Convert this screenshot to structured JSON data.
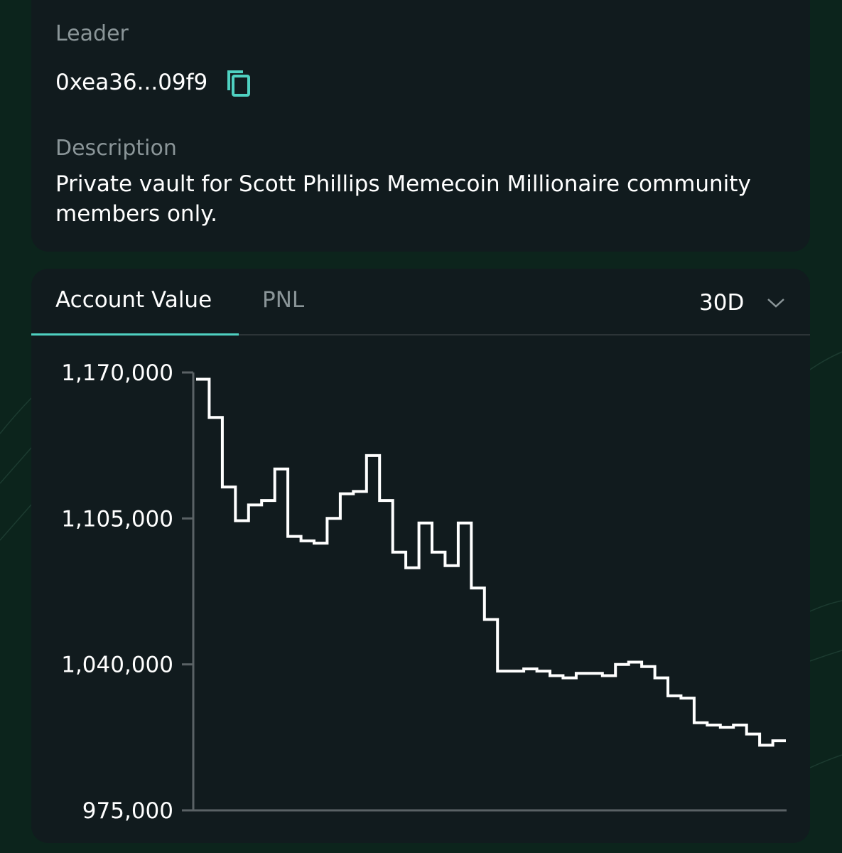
{
  "vault_info": {
    "leader_label": "Leader",
    "leader_address": "0xea36...09f9",
    "copy_icon": "copy-icon",
    "description_label": "Description",
    "description_text": "Private vault for Scott Phillips Memecoin Millionaire community members only."
  },
  "chart_panel": {
    "tabs": [
      {
        "label": "Account Value",
        "active": true
      },
      {
        "label": "PNL",
        "active": false
      }
    ],
    "range": {
      "selected": "30D",
      "icon": "chevron-down-icon"
    },
    "accent_color": "#4fd1c1"
  },
  "chart_data": {
    "type": "line",
    "step": true,
    "title": "",
    "xlabel": "",
    "ylabel": "",
    "ylim": [
      975000,
      1170000
    ],
    "yticks": [
      975000,
      1040000,
      1105000,
      1170000
    ],
    "ytick_labels": [
      "975,000",
      "1,040,000",
      "1,105,000",
      "1,170,000"
    ],
    "series": [
      {
        "color": "#ffffff",
        "x": [
          0,
          1,
          2,
          3,
          4,
          5,
          6,
          7,
          8,
          9,
          10,
          11,
          12,
          13,
          14,
          15,
          16,
          17,
          18,
          19,
          20,
          21,
          22,
          23,
          24,
          25,
          26,
          27,
          28,
          29,
          30,
          31,
          32,
          33,
          34,
          35,
          36,
          37,
          38,
          39,
          40,
          41,
          42,
          43,
          44
        ],
        "values": [
          1167000,
          1150000,
          1119000,
          1104000,
          1111000,
          1113000,
          1127000,
          1097000,
          1095000,
          1094000,
          1105000,
          1116000,
          1117000,
          1133000,
          1113000,
          1090000,
          1083000,
          1103000,
          1090000,
          1084000,
          1103000,
          1074000,
          1060000,
          1037000,
          1037000,
          1038000,
          1037000,
          1035000,
          1034000,
          1036000,
          1036000,
          1035000,
          1040000,
          1041000,
          1039000,
          1034000,
          1026000,
          1025000,
          1014000,
          1013000,
          1012000,
          1013000,
          1009000,
          1004000,
          1006000
        ]
      }
    ]
  }
}
